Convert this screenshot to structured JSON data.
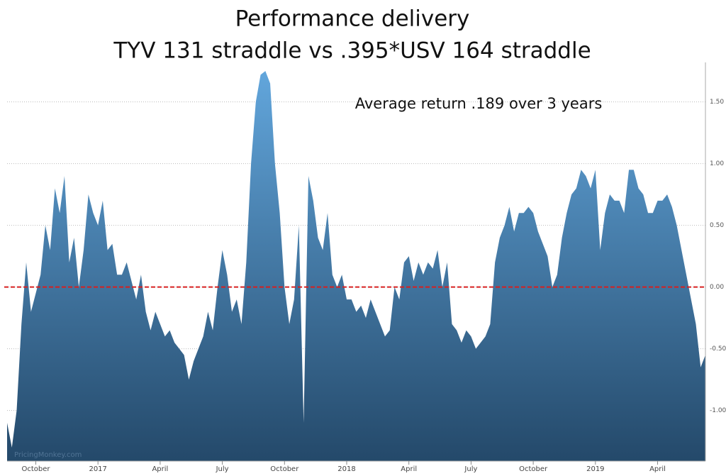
{
  "chart_data": {
    "type": "area",
    "title": "Performance delivery",
    "subtitle": "TYV 131 straddle vs .395*USV 164 straddle",
    "annotation": "Average return .189 over 3 years",
    "watermark": "PricingMonkey.com",
    "values": [
      -1.1,
      -1.3,
      -1.0,
      -0.3,
      0.2,
      -0.2,
      -0.05,
      0.1,
      0.5,
      0.3,
      0.8,
      0.6,
      0.9,
      0.2,
      0.4,
      0.0,
      0.3,
      0.75,
      0.6,
      0.5,
      0.7,
      0.3,
      0.35,
      0.1,
      0.1,
      0.2,
      0.05,
      -0.1,
      0.1,
      -0.2,
      -0.35,
      -0.2,
      -0.3,
      -0.4,
      -0.35,
      -0.45,
      -0.5,
      -0.55,
      -0.75,
      -0.6,
      -0.5,
      -0.4,
      -0.2,
      -0.35,
      0.0,
      0.3,
      0.1,
      -0.2,
      -0.1,
      -0.3,
      0.2,
      1.0,
      1.5,
      1.72,
      1.75,
      1.65,
      1.0,
      0.6,
      0.0,
      -0.3,
      -0.1,
      0.5,
      -1.1,
      0.9,
      0.7,
      0.4,
      0.3,
      0.6,
      0.1,
      0.0,
      0.1,
      -0.1,
      -0.1,
      -0.2,
      -0.15,
      -0.25,
      -0.1,
      -0.2,
      -0.3,
      -0.4,
      -0.35,
      0.0,
      -0.1,
      0.2,
      0.25,
      0.05,
      0.2,
      0.1,
      0.2,
      0.15,
      0.3,
      0.0,
      0.2,
      -0.3,
      -0.35,
      -0.45,
      -0.35,
      -0.4,
      -0.5,
      -0.45,
      -0.4,
      -0.3,
      0.2,
      0.4,
      0.5,
      0.65,
      0.45,
      0.6,
      0.6,
      0.65,
      0.6,
      0.45,
      0.35,
      0.25,
      0.0,
      0.1,
      0.4,
      0.6,
      0.75,
      0.8,
      0.95,
      0.9,
      0.8,
      0.95,
      0.3,
      0.6,
      0.75,
      0.7,
      0.7,
      0.6,
      0.95,
      0.95,
      0.8,
      0.75,
      0.6,
      0.6,
      0.7,
      0.7,
      0.75,
      0.65,
      0.5,
      0.3,
      0.1,
      -0.1,
      -0.3,
      -0.65,
      -0.55
    ],
    "color_top": "#62a6dc",
    "color_bottom": "#24496a",
    "xlim": [
      0,
      146
    ],
    "xticks": [
      {
        "value": 6,
        "label": "October"
      },
      {
        "value": 19,
        "label": "2017"
      },
      {
        "value": 32,
        "label": "April"
      },
      {
        "value": 45,
        "label": "July"
      },
      {
        "value": 58,
        "label": "October"
      },
      {
        "value": 71,
        "label": "2018"
      },
      {
        "value": 84,
        "label": "April"
      },
      {
        "value": 97,
        "label": "July"
      },
      {
        "value": 110,
        "label": "October"
      },
      {
        "value": 123,
        "label": "2019"
      },
      {
        "value": 136,
        "label": "April"
      }
    ],
    "ylim": [
      -1.41,
      1.82
    ],
    "yticks": [
      {
        "value": -1,
        "label": "-1.00"
      },
      {
        "value": -0.5,
        "label": "-0.50"
      },
      {
        "value": 0,
        "label": "0.00"
      },
      {
        "value": 0.5,
        "label": "0.50"
      },
      {
        "value": 1,
        "label": "1.00"
      },
      {
        "value": 1.5,
        "label": "1.50"
      }
    ],
    "grid": true,
    "reference_line": {
      "value": 0,
      "color": "#d62020"
    }
  }
}
